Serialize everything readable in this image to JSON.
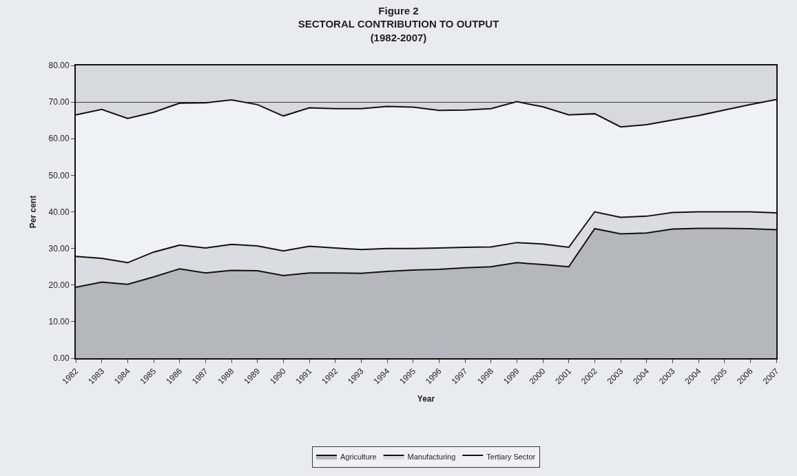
{
  "chart_data": {
    "type": "area",
    "stacked": true,
    "title": "Figure 2",
    "subtitle": "SECTORAL CONTRIBUTION TO OUTPUT\n(1982-2007)",
    "xlabel": "Year",
    "ylabel": "Per cent",
    "categories": [
      "1982",
      "1983",
      "1984",
      "1985",
      "1986",
      "1987",
      "1988",
      "1989",
      "1990",
      "1991",
      "1992",
      "1993",
      "1994",
      "1995",
      "1996",
      "1997",
      "1998",
      "1999",
      "2000",
      "2001",
      "2002",
      "2003",
      "2004",
      "2003",
      "2004",
      "2005",
      "2006",
      "2007"
    ],
    "series": [
      {
        "name": "Agriculture",
        "color": "#b4b8bc",
        "values": [
          19.4,
          20.8,
          20.2,
          22.2,
          24.4,
          23.3,
          24.0,
          23.9,
          22.6,
          23.3,
          23.3,
          23.2,
          23.7,
          24.1,
          24.3,
          24.7,
          25.0,
          26.1,
          25.6,
          25.0,
          35.4,
          34.0,
          34.2,
          35.3,
          35.5,
          35.5,
          35.4,
          35.1
        ]
      },
      {
        "name": "Manufacturing",
        "color": "#d9dde1",
        "values": [
          8.4,
          6.5,
          5.9,
          6.8,
          6.5,
          6.8,
          7.1,
          6.8,
          6.7,
          7.3,
          6.8,
          6.5,
          6.3,
          5.9,
          5.8,
          5.6,
          5.4,
          5.5,
          5.6,
          5.3,
          4.6,
          4.5,
          4.6,
          4.5,
          4.5,
          4.5,
          4.6,
          4.6
        ]
      },
      {
        "name": "Tertiary Sector",
        "color": "#eef1f5",
        "values": [
          38.7,
          40.7,
          39.4,
          38.2,
          38.8,
          39.7,
          39.5,
          38.6,
          36.9,
          37.8,
          38.1,
          38.5,
          38.8,
          38.6,
          37.6,
          37.5,
          37.8,
          38.5,
          37.5,
          36.2,
          26.8,
          24.7,
          25.0,
          25.3,
          26.3,
          27.8,
          29.3,
          31.0
        ]
      }
    ],
    "ylim": [
      0,
      80
    ],
    "yticks": [
      {
        "value": 0,
        "label": "0.00"
      },
      {
        "value": 10,
        "label": "10.00"
      },
      {
        "value": 20,
        "label": "20.00"
      },
      {
        "value": 30,
        "label": "30.00"
      },
      {
        "value": 40,
        "label": "40.00"
      },
      {
        "value": 50,
        "label": "50.00"
      },
      {
        "value": 60,
        "label": "60.00"
      },
      {
        "value": 70,
        "label": "70.00"
      },
      {
        "value": 80,
        "label": "80.00"
      }
    ],
    "grid": "y",
    "legend": "bottom",
    "line_style": "solid"
  }
}
